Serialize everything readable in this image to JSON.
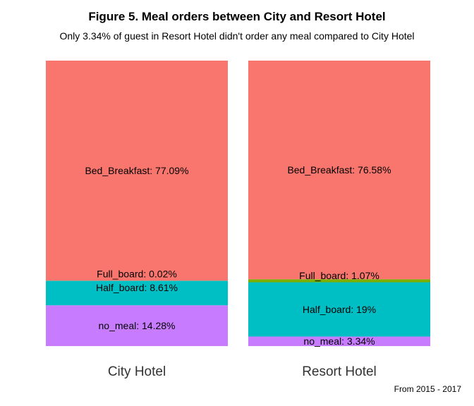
{
  "chart_data": {
    "type": "bar",
    "title": "Figure 5. Meal orders between City and Resort Hotel",
    "subtitle": "Only 3.34% of guest in Resort Hotel didn't order any meal compared to City Hotel",
    "caption": "From 2015 - 2017",
    "categories": [
      "City Hotel",
      "Resort Hotel"
    ],
    "stacked": true,
    "normalized": true,
    "series": [
      {
        "name": "no_meal",
        "color": "#C77CFF",
        "values": [
          14.28,
          3.34
        ]
      },
      {
        "name": "Half_board",
        "color": "#00BFC4",
        "values": [
          8.61,
          19
        ]
      },
      {
        "name": "Full_board",
        "color": "#7CAE00",
        "values": [
          0.02,
          1.07
        ]
      },
      {
        "name": "Bed_Breakfast",
        "color": "#F8766D",
        "values": [
          77.09,
          76.58
        ]
      }
    ],
    "labels": [
      [
        "no_meal:  14.28%",
        "no_meal:  3.34%"
      ],
      [
        "Half_board:  8.61%",
        "Half_board:  19%"
      ],
      [
        "Full_board:  0.02%",
        "Full_board:  1.07%"
      ],
      [
        "Bed_Breakfast:  77.09%",
        "Bed_Breakfast:  76.58%"
      ]
    ]
  }
}
